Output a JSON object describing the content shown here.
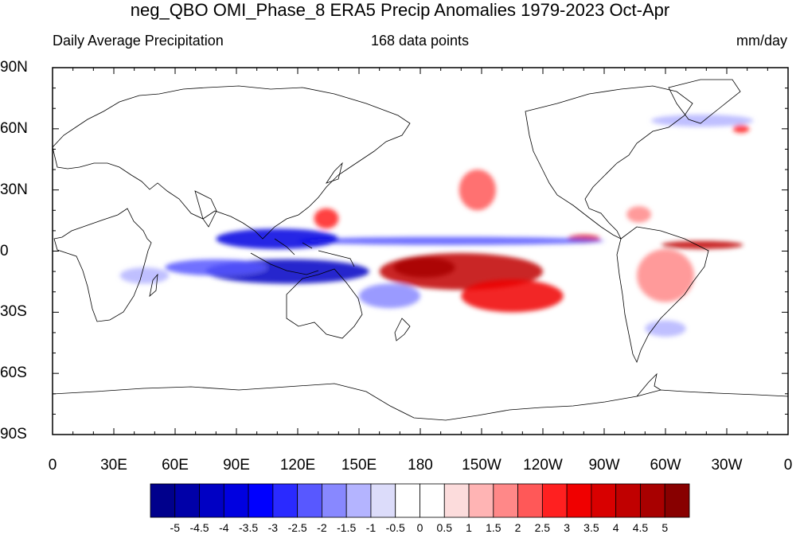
{
  "chart_data": {
    "type": "heatmap",
    "title": "neg_QBO OMI_Phase_8 ERA5 Precip Anomalies 1979-2023 Oct-Apr",
    "subtitle_left": "Daily Average Precipitation",
    "subtitle_center": "168 data points",
    "subtitle_right": "mm/day",
    "projection": "cylindrical equidistant",
    "lon_range": [
      0,
      360
    ],
    "lat_range": [
      -90,
      90
    ],
    "y_ticks": [
      "90N",
      "60N",
      "30N",
      "0",
      "30S",
      "60S",
      "90S"
    ],
    "y_tick_values": [
      90,
      60,
      30,
      0,
      -30,
      -60,
      -90
    ],
    "x_ticks": [
      "0",
      "30E",
      "60E",
      "90E",
      "120E",
      "150E",
      "180",
      "150W",
      "120W",
      "90W",
      "60W",
      "30W",
      "0"
    ],
    "x_tick_values": [
      0,
      30,
      60,
      90,
      120,
      150,
      180,
      210,
      240,
      270,
      300,
      330,
      360
    ],
    "colorbar": {
      "levels": [
        "-5",
        "-4.5",
        "-4",
        "-3.5",
        "-3",
        "-2.5",
        "-2",
        "-1.5",
        "-1",
        "-0.5",
        "0",
        "0.5",
        "1",
        "1.5",
        "2",
        "2.5",
        "3",
        "3.5",
        "4",
        "4.5",
        "5"
      ],
      "colors": [
        "#00008c",
        "#0000a8",
        "#0000c4",
        "#0000e0",
        "#0000ff",
        "#2a2aff",
        "#5858ff",
        "#8888ff",
        "#b4b4ff",
        "#dcdcfa",
        "#ffffff",
        "#ffffff",
        "#fcdcdc",
        "#ffb4b4",
        "#ff8888",
        "#ff5858",
        "#ff2020",
        "#f00000",
        "#d80000",
        "#c00000",
        "#a80000",
        "#880000"
      ]
    },
    "anomaly_regions": [
      {
        "lon": 200,
        "lat": -10,
        "rx": 40,
        "ry": 9,
        "value": 4.5
      },
      {
        "lon": 225,
        "lat": -22,
        "rx": 25,
        "ry": 8,
        "value": 3.5
      },
      {
        "lon": 182,
        "lat": -8,
        "rx": 15,
        "ry": 5,
        "value": 5
      },
      {
        "lon": 208,
        "lat": 30,
        "rx": 9,
        "ry": 10,
        "value": 2.5
      },
      {
        "lon": 134,
        "lat": 16,
        "rx": 6,
        "ry": 5,
        "value": 3
      },
      {
        "lon": 260,
        "lat": 6,
        "rx": 8,
        "ry": 2,
        "value": 4
      },
      {
        "lon": 318,
        "lat": 3,
        "rx": 20,
        "ry": 2,
        "value": 4.5
      },
      {
        "lon": 300,
        "lat": -12,
        "rx": 14,
        "ry": 13,
        "value": 2
      },
      {
        "lon": 287,
        "lat": 18,
        "rx": 6,
        "ry": 4,
        "value": 2
      },
      {
        "lon": 337,
        "lat": 60,
        "rx": 4,
        "ry": 2,
        "value": 3
      },
      {
        "lon": 195,
        "lat": 5,
        "rx": 75,
        "ry": 2,
        "value": -2
      },
      {
        "lon": 110,
        "lat": 6,
        "rx": 30,
        "ry": 5,
        "value": -3.5
      },
      {
        "lon": 115,
        "lat": -10,
        "rx": 40,
        "ry": 6,
        "value": -4
      },
      {
        "lon": 80,
        "lat": -8,
        "rx": 25,
        "ry": 4,
        "value": -2
      },
      {
        "lon": 165,
        "lat": -22,
        "rx": 15,
        "ry": 6,
        "value": -1.5
      },
      {
        "lon": 300,
        "lat": -38,
        "rx": 10,
        "ry": 4,
        "value": -1
      },
      {
        "lon": 318,
        "lat": 64,
        "rx": 25,
        "ry": 3,
        "value": -1
      },
      {
        "lon": 45,
        "lat": -12,
        "rx": 12,
        "ry": 4,
        "value": -1
      }
    ]
  }
}
